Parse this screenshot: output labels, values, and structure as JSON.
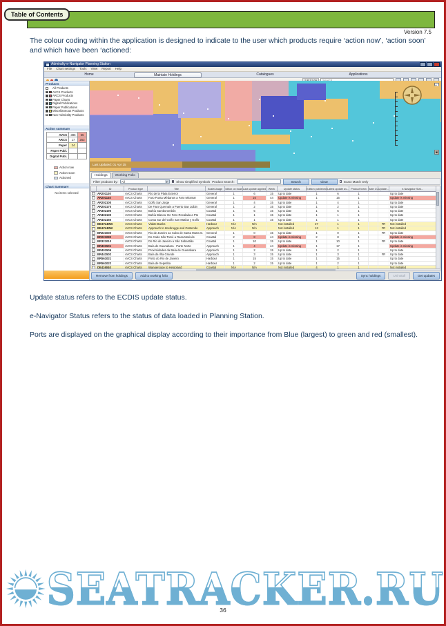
{
  "page": {
    "toc_button": "Table of Contents",
    "version": "Version 7.5",
    "intro_paragraph": "The colour coding within the application is designed to indicate to the user which products require ‘action now’, ‘action soon’ and which have been ‘actioned:",
    "paragraphs": [
      "Update status refers to the ECDIS update status.",
      "e-Navigator Status refers to the status of data loaded in Planning Station.",
      "Ports are displayed on the graphical display according to their importance from Blue (largest) to green and red (smallest)."
    ],
    "watermark": "SEATRACKER.RU",
    "page_number": "36"
  },
  "app": {
    "title": "Admiralty e-Navigator Planning Station",
    "menus": [
      "File",
      "Chart settings",
      "Tools",
      "View",
      "Report",
      "Help"
    ],
    "tabs": [
      {
        "label": "Home",
        "active": false
      },
      {
        "label": "Maintain Holdings",
        "active": true
      },
      {
        "label": "Catalogues",
        "active": false
      },
      {
        "label": "Applications",
        "active": false
      }
    ],
    "toolbar": {
      "latlon_label": "Lat / Lon",
      "search_placeholder": "Search"
    },
    "products_panel": {
      "title": "Products",
      "items": [
        {
          "label": "All Products",
          "checked": false,
          "swatch": null
        },
        {
          "label": "AVCS Products",
          "checked": true,
          "swatch": "#b5342e"
        },
        {
          "label": "ARCS Products",
          "checked": true,
          "swatch": "#c14f62"
        },
        {
          "label": "Paper Charts",
          "checked": true,
          "swatch": "#3f62b5"
        },
        {
          "label": "Digital Publications",
          "checked": true,
          "swatch": "#2ba3ae"
        },
        {
          "label": "Paper Publications",
          "checked": true,
          "swatch": "#58a54a"
        },
        {
          "label": "Miscellaneous Products",
          "checked": true,
          "swatch": "#e0d84e"
        },
        {
          "label": "Non-Admiralty Products",
          "checked": false,
          "swatch": "#777777"
        }
      ]
    },
    "action_summary": {
      "title": "Action summary",
      "rows": [
        {
          "label": "AVCS",
          "v1": "386",
          "v1c": "",
          "v2": "56",
          "v2c": "c-red"
        },
        {
          "label": "ARCS",
          "v1": "17",
          "v1c": "",
          "v2": "253",
          "v2c": "c-red"
        },
        {
          "label": "Paper",
          "v1": "24",
          "v1c": "c-yellow",
          "v2": "",
          "v2c": ""
        },
        {
          "label": "Paper Publ.",
          "v1": "",
          "v1c": "",
          "v2": "",
          "v2c": ""
        },
        {
          "label": "Digital Publ.",
          "v1": "",
          "v1c": "",
          "v2": "",
          "v2c": ""
        }
      ],
      "legend": [
        {
          "label": "Action now",
          "color": "#f2b0a8"
        },
        {
          "label": "Action soon",
          "color": "#fbf2c0"
        },
        {
          "label": "Actioned",
          "color": "#cfe0f2"
        }
      ]
    },
    "chart_summary": {
      "title": "Chart Summary",
      "empty_text": "No items selected"
    },
    "map_status": {
      "left": "36 18.51N    008 28.26 E     Scale 1 : 9,409,457",
      "right": "Last Updated: 01 Apr 15"
    },
    "bottom_panel": {
      "tabs": [
        {
          "label": "Holdings",
          "active": true
        },
        {
          "label": "Working Folio",
          "active": false
        }
      ],
      "filter_label": "Filter products by:",
      "filter_value": "All",
      "simplified_label": "Show simplified symbols",
      "product_search_label": "Product Search:",
      "search_button": "Search",
      "clear_button": "Clear",
      "exact_match_label": "Exact Match Only",
      "table": {
        "columns": [
          "",
          "ID",
          "Product type",
          "Title",
          "Scale/Usage",
          "Edition on board",
          "Last update applied",
          "Week",
          "Update status",
          "Edition published",
          "Latest update av...",
          "Product team",
          "State CU",
          "Update...",
          "e-Navigator Stat..."
        ],
        "rows": [
          {
            "id": "AR201130",
            "idc": "",
            "type": "AVCS Charts",
            "title": "Río de la Plata Exterior",
            "usage": "General",
            "edb": "1",
            "lua": "6",
            "luac": "",
            "week": "15",
            "status": "Up to date",
            "statusc": "",
            "edp": "1",
            "lat": "6",
            "team": "1",
            "st": "",
            "upd": "",
            "enav": "Up to date",
            "enavc": "",
            "rowc": ""
          },
          {
            "id": "AR201140",
            "idc": "c-red",
            "type": "AVCS Charts",
            "title": "Faro Punta Médanos a Faro Miramar",
            "usage": "General",
            "edb": "1",
            "lua": "16",
            "luac": "c-red",
            "week": "44",
            "status": "Update is missing",
            "statusc": "c-red",
            "edp": "1",
            "lat": "16",
            "team": "1",
            "st": "",
            "upd": "",
            "enav": "Update is missing",
            "enavc": "c-red",
            "rowc": ""
          },
          {
            "id": "AR202100",
            "idc": "",
            "type": "AVCS Charts",
            "title": "Golfo San Jorge",
            "usage": "General",
            "edb": "1",
            "lua": "4",
            "luac": "",
            "week": "15",
            "status": "Up to date",
            "statusc": "",
            "edp": "1",
            "lat": "4",
            "team": "1",
            "st": "",
            "upd": "",
            "enav": "Up to date",
            "enavc": "",
            "rowc": ""
          },
          {
            "id": "AR203170",
            "idc": "",
            "type": "AVCS Charts",
            "title": "De Faro Quemain a Puerto San Julián",
            "usage": "General",
            "edb": "1",
            "lua": "2",
            "luac": "",
            "week": "15",
            "status": "Up to date",
            "statusc": "",
            "edp": "1",
            "lat": "2",
            "team": "1",
            "st": "",
            "upd": "",
            "enav": "Up to date",
            "enavc": "",
            "rowc": ""
          },
          {
            "id": "AR302190",
            "idc": "",
            "type": "AVCS Charts",
            "title": "Bahía Samborombón",
            "usage": "Coastal",
            "edb": "1",
            "lua": "5",
            "luac": "",
            "week": "15",
            "status": "Up to date",
            "statusc": "",
            "edp": "1",
            "lat": "5",
            "team": "1",
            "st": "",
            "upd": "",
            "enav": "Up to date",
            "enavc": "",
            "rowc": ""
          },
          {
            "id": "AR402130",
            "idc": "",
            "type": "AVCS Charts",
            "title": "Bahía Blanca: De Faro Recalada a Pto",
            "usage": "Coastal",
            "edb": "1",
            "lua": "1",
            "luac": "",
            "week": "15",
            "status": "Up to date",
            "statusc": "",
            "edp": "1",
            "lat": "1",
            "team": "1",
            "st": "",
            "upd": "",
            "enav": "Up to date",
            "enavc": "",
            "rowc": ""
          },
          {
            "id": "AR402150",
            "idc": "",
            "type": "AVCS Charts",
            "title": "Costa Sur del Golfo San Matías y Golfo",
            "usage": "Coastal",
            "edb": "1",
            "lua": "1",
            "luac": "",
            "week": "15",
            "status": "Up to date",
            "statusc": "",
            "edp": "1",
            "lat": "1",
            "team": "1",
            "st": "",
            "upd": "",
            "enav": "Up to date",
            "enavc": "",
            "rowc": ""
          },
          {
            "id": "BE3VLBNK",
            "idc": "",
            "type": "AVCS Charts",
            "title": "Vlakte Banks",
            "usage": "Harbour",
            "edb": "N/A",
            "lua": "N/A",
            "luac": "",
            "week": "",
            "status": "Not installed",
            "statusc": "c-yellow",
            "edp": "27",
            "lat": "1",
            "team": "1",
            "st": "",
            "upd": "FR",
            "enav": "Not installed",
            "enavc": "c-yellow",
            "rowc": "r-yellow"
          },
          {
            "id": "BE4VLBNK",
            "idc": "",
            "type": "AVCS Charts",
            "title": "Approach to Zeebrugge and Oostende",
            "usage": "Approach",
            "edb": "N/A",
            "lua": "N/A",
            "luac": "",
            "week": "",
            "status": "Not installed",
            "statusc": "c-yellow",
            "edp": "13",
            "lat": "1",
            "team": "1",
            "st": "",
            "upd": "FR",
            "enav": "Not installed",
            "enavc": "c-yellow",
            "rowc": "r-yellow"
          },
          {
            "id": "BR221030",
            "idc": "",
            "type": "AVCS Charts",
            "title": "Rio de Janeiro ao Cabo de Santa Marta G.",
            "usage": "General",
            "edb": "1",
            "lua": "0",
            "luac": "",
            "week": "15",
            "status": "Up to date",
            "statusc": "",
            "edp": "1",
            "lat": "0",
            "team": "1",
            "st": "",
            "upd": "FR",
            "enav": "Up to date",
            "enavc": "",
            "rowc": ""
          },
          {
            "id": "BR221080",
            "idc": "c-red",
            "type": "AVCS Charts",
            "title": "Do Cabo São Tomé a Rasa Maricás",
            "usage": "Coastal",
            "edb": "2",
            "lua": "8",
            "luac": "c-red",
            "week": "44",
            "status": "Update is missing",
            "statusc": "c-red",
            "edp": "2",
            "lat": "8",
            "team": "1",
            "st": "",
            "upd": "",
            "enav": "Update is missing",
            "enavc": "c-red",
            "rowc": ""
          },
          {
            "id": "BR321010",
            "idc": "",
            "type": "AVCS Charts",
            "title": "Do Rio de Janeiro a São Sebastião",
            "usage": "Coastal",
            "edb": "1",
            "lua": "10",
            "luac": "",
            "week": "15",
            "status": "Up to date",
            "statusc": "",
            "edp": "1",
            "lat": "10",
            "team": "1",
            "st": "",
            "upd": "FR",
            "enav": "Up to date",
            "enavc": "",
            "rowc": ""
          },
          {
            "id": "BR401501",
            "idc": "c-red",
            "type": "AVCS Charts",
            "title": "Baía de Guanabara - Parte Norte",
            "usage": "Approach",
            "edb": "1",
            "lua": "4",
            "luac": "c-red",
            "week": "44",
            "status": "Update is missing",
            "statusc": "c-red",
            "edp": "1",
            "lat": "17",
            "team": "1",
            "st": "",
            "upd": "",
            "enav": "Update is missing",
            "enavc": "c-red",
            "rowc": ""
          },
          {
            "id": "BR401506",
            "idc": "",
            "type": "AVCS Charts",
            "title": "Proximidades da Baía de Guanabara",
            "usage": "Approach",
            "edb": "1",
            "lua": "2",
            "luac": "",
            "week": "15",
            "status": "Up to date",
            "statusc": "",
            "edp": "1",
            "lat": "2",
            "team": "1",
            "st": "",
            "upd": "",
            "enav": "Up to date",
            "enavc": "",
            "rowc": ""
          },
          {
            "id": "BR441502",
            "idc": "",
            "type": "AVCS Charts",
            "title": "Baía da Ilha Grande",
            "usage": "Approach",
            "edb": "1",
            "lua": "3",
            "luac": "",
            "week": "15",
            "status": "Up to date",
            "statusc": "",
            "edp": "1",
            "lat": "3",
            "team": "1",
            "st": "",
            "upd": "FR",
            "enav": "Up to date",
            "enavc": "",
            "rowc": ""
          },
          {
            "id": "BR561021",
            "idc": "",
            "type": "AVCS Charts",
            "title": "Porto do Rio de Janeiro",
            "usage": "Harbour",
            "edb": "1",
            "lua": "15",
            "luac": "",
            "week": "15",
            "status": "Up to date",
            "statusc": "",
            "edp": "1",
            "lat": "15",
            "team": "1",
            "st": "",
            "upd": "",
            "enav": "Up to date",
            "enavc": "",
            "rowc": ""
          },
          {
            "id": "BR561022",
            "idc": "",
            "type": "AVCS Charts",
            "title": "Baía de Sepetiba",
            "usage": "Harbour",
            "edb": "1",
            "lua": "2",
            "luac": "",
            "week": "15",
            "status": "Up to date",
            "statusc": "",
            "edp": "1",
            "lat": "2",
            "team": "1",
            "st": "",
            "upd": "",
            "enav": "Up to date",
            "enavc": "",
            "rowc": ""
          },
          {
            "id": "DE416040",
            "idc": "",
            "type": "AVCS Charts",
            "title": "Wangerooge to Helgoland",
            "usage": "Coastal",
            "edb": "N/A",
            "lua": "N/A",
            "luac": "",
            "week": "",
            "status": "Not installed",
            "statusc": "c-yellow",
            "edp": "4",
            "lat": "1",
            "team": "1",
            "st": "",
            "upd": "",
            "enav": "Not installed",
            "enavc": "c-yellow",
            "rowc": "r-yellow"
          },
          {
            "id": "DE421005",
            "idc": "",
            "type": "AVCS Charts",
            "title": "Helgoland Approach",
            "usage": "Coastal",
            "edb": "N/A",
            "lua": "N/A",
            "luac": "",
            "week": "",
            "status": "Not installed",
            "statusc": "c-yellow",
            "edp": "8",
            "lat": "2",
            "team": "1",
            "st": "",
            "upd": "",
            "enav": "Not installed",
            "enavc": "c-yellow",
            "rowc": "r-yellow"
          },
          {
            "id": "DE421006",
            "idc": "",
            "type": "AVCS Charts",
            "title": "Weser and Jade Approach",
            "usage": "Approach",
            "edb": "N/A",
            "lua": "N/A",
            "luac": "",
            "week": "",
            "status": "Not installed",
            "statusc": "c-yellow",
            "edp": "14",
            "lat": "1",
            "team": "1",
            "st": "",
            "upd": "FR",
            "enav": "Not installed",
            "enavc": "c-yellow",
            "rowc": "r-yellow"
          },
          {
            "id": "DE421010",
            "idc": "",
            "type": "AVCS Charts",
            "title": "Helgoland Approach",
            "usage": "Approach",
            "edb": "N/A",
            "lua": "N/A",
            "luac": "",
            "week": "",
            "status": "Not installed",
            "statusc": "c-yellow",
            "edp": "8",
            "lat": "2",
            "team": "1",
            "st": "",
            "upd": "FR",
            "enav": "Not installed",
            "enavc": "c-yellow",
            "rowc": "r-yellow"
          },
          {
            "id": "DE521020",
            "idc": "",
            "type": "AVCS Charts",
            "title": "Jade and Weser Approaches",
            "usage": "Approach",
            "edb": "N/A",
            "lua": "N/A",
            "luac": "",
            "week": "",
            "status": "Not installed",
            "statusc": "c-yellow",
            "edp": "14",
            "lat": "1",
            "team": "1",
            "st": "",
            "upd": "",
            "enav": "Not installed",
            "enavc": "c-yellow",
            "rowc": "r-yellow"
          }
        ]
      },
      "buttons_left": [
        "Remove from holdings",
        "Add to working folio"
      ],
      "buttons_right": [
        {
          "label": "Sync holdings",
          "disabled": false
        },
        {
          "label": "Uninstall",
          "disabled": true
        },
        {
          "label": "Get updates",
          "disabled": false
        }
      ]
    }
  }
}
